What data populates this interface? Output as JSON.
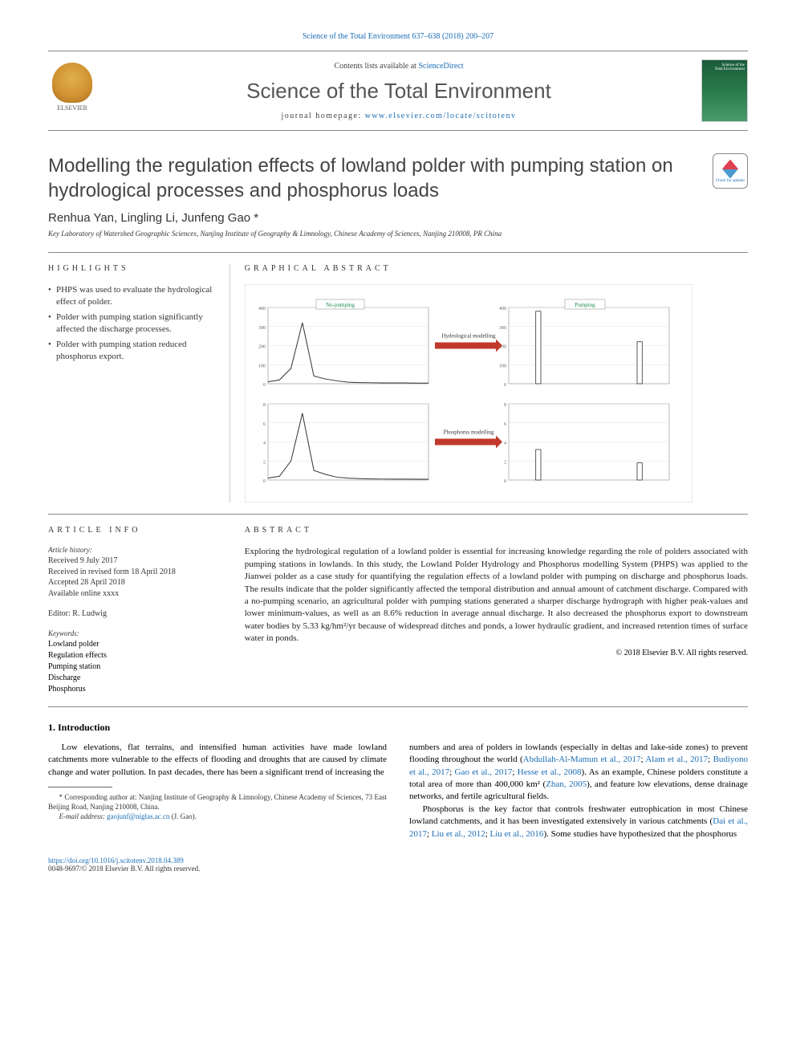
{
  "top_link": "Science of the Total Environment 637–638 (2018) 200–207",
  "header": {
    "contents_pre": "Contents lists available at ",
    "contents_link": "ScienceDirect",
    "journal": "Science of the Total Environment",
    "homepage_pre": "journal homepage: ",
    "homepage_link": "www.elsevier.com/locate/scitotenv",
    "publisher": "ELSEVIER",
    "cover_line1": "Science of the",
    "cover_line2": "Total Environment"
  },
  "updates_badge": "Check for updates",
  "title": "Modelling the regulation effects of lowland polder with pumping station on hydrological processes and phosphorus loads",
  "authors": "Renhua Yan, Lingling Li, Junfeng Gao *",
  "affiliation": "Key Laboratory of Watershed Geographic Sciences, Nanjing Institute of Geography & Limnology, Chinese Academy of Sciences, Nanjing 210008, PR China",
  "labels": {
    "highlights": "HIGHLIGHTS",
    "graphical": "GRAPHICAL ABSTRACT",
    "article_info": "ARTICLE INFO",
    "abstract": "ABSTRACT"
  },
  "highlights": [
    "PHPS was used to evaluate the hydrological effect of polder.",
    "Polder with pumping station significantly affected the discharge processes.",
    "Polder with pumping station reduced phosphorus export."
  ],
  "graphical_abstract": {
    "top_left_title": "No-pumping",
    "top_right_title": "Pumping",
    "arrow1_label": "Hydrological modelling",
    "arrow2_label": "Phosphorus modelling",
    "arrow_color": "#c0392b",
    "grid_color": "#e0e0e0",
    "line_color": "#333333",
    "background_color": "#ffffff",
    "panels": {
      "tl": {
        "y_max": 400,
        "y_step": 100,
        "series": [
          10,
          20,
          80,
          320,
          40,
          25,
          15,
          8,
          6,
          5,
          4,
          4,
          4,
          3,
          3
        ]
      },
      "tr": {
        "y_max": 400,
        "y_step": 100,
        "series": [
          0,
          0,
          0,
          380,
          0,
          0,
          0,
          0,
          0,
          0,
          0,
          0,
          0,
          0,
          0,
          220,
          0,
          0,
          0
        ]
      },
      "bl": {
        "y_max": 8,
        "y_step": 2,
        "series": [
          0.2,
          0.4,
          2,
          7,
          1,
          0.6,
          0.3,
          0.2,
          0.15,
          0.12,
          0.1,
          0.1,
          0.1,
          0.08,
          0.08
        ]
      },
      "br": {
        "y_max": 8,
        "y_step": 2,
        "series": [
          0,
          0,
          0,
          3.2,
          0,
          0,
          0,
          0,
          0,
          0,
          0,
          0,
          0,
          0,
          0,
          1.8,
          0,
          0,
          0
        ]
      }
    }
  },
  "article_info": {
    "history_heading": "Article history:",
    "history": [
      "Received 9 July 2017",
      "Received in revised form 18 April 2018",
      "Accepted 28 April 2018",
      "Available online xxxx"
    ],
    "editor_label": "Editor: ",
    "editor": "R. Ludwig",
    "keywords_heading": "Keywords:",
    "keywords": [
      "Lowland polder",
      "Regulation effects",
      "Pumping station",
      "Discharge",
      "Phosphorus"
    ]
  },
  "abstract": "Exploring the hydrological regulation of a lowland polder is essential for increasing knowledge regarding the role of polders associated with pumping stations in lowlands. In this study, the Lowland Polder Hydrology and Phosphorus modelling System (PHPS) was applied to the Jianwei polder as a case study for quantifying the regulation effects of a lowland polder with pumping on discharge and phosphorus loads. The results indicate that the polder significantly affected the temporal distribution and annual amount of catchment discharge. Compared with a no-pumping scenario, an agricultural polder with pumping stations generated a sharper discharge hydrograph with higher peak-values and lower minimum-values, as well as an 8.6% reduction in average annual discharge. It also decreased the phosphorus export to downstream water bodies by 5.33 kg/hm²/yr because of widespread ditches and ponds, a lower hydraulic gradient, and increased retention times of surface water in ponds.",
  "copyright": "© 2018 Elsevier B.V. All rights reserved.",
  "intro": {
    "heading": "1. Introduction",
    "p1_pre": "Low elevations, flat terrains, and intensified human activities have made lowland catchments more vulnerable to the effects of flooding and droughts that are caused by climate change and water pollution. In past decades, there has been a significant trend of increasing the",
    "p1_cont_pre": "numbers and area of polders in lowlands (especially in deltas and lake-side zones) to prevent flooding throughout the world (",
    "refs1": [
      "Abdullah-Al-Mamun et al., 2017",
      "Alam et al., 2017",
      "Budiyono et al., 2017",
      "Gao et al., 2017",
      "Hesse et al., 2008"
    ],
    "p1_cont_mid": "). As an example, Chinese polders constitute a total area of more than 400,000 km² (",
    "ref_zhan": "Zhan, 2005",
    "p1_cont_post": "), and feature low elevations, dense drainage networks, and fertile agricultural fields.",
    "p2_pre": "Phosphorus is the key factor that controls freshwater eutrophication in most Chinese lowland catchments, and it has been investigated extensively in various catchments (",
    "refs2": [
      "Dai et al., 2017",
      "Liu et al., 2012",
      "Liu et al., 2016"
    ],
    "p2_post": "). Some studies have hypothesized that the phosphorus"
  },
  "footnote": {
    "corr": "* Corresponding author at: Nanjing Institute of Geography & Limnology, Chinese Academy of Sciences, 73 East Beijing Road, Nanjing 210008, China.",
    "email_label": "E-mail address: ",
    "email": "gaojunf@niglas.ac.cn",
    "email_post": " (J. Gao)."
  },
  "footer": {
    "doi": "https://doi.org/10.1016/j.scitotenv.2018.04.389",
    "issn_line": "0048-9697/© 2018 Elsevier B.V. All rights reserved."
  }
}
